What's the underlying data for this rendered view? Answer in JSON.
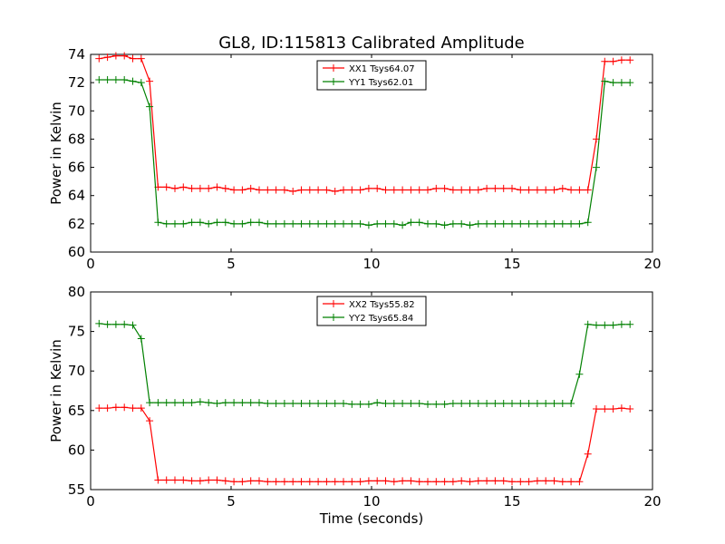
{
  "title": "GL8, ID:115813 Calibrated Amplitude",
  "chart_data": [
    {
      "type": "line",
      "xlabel": "",
      "ylabel": "Power in Kelvin",
      "xlim": [
        0,
        20
      ],
      "ylim": [
        60,
        74
      ],
      "xticks": [
        "0",
        "5",
        "10",
        "15",
        "20"
      ],
      "yticks": [
        "60",
        "62",
        "64",
        "66",
        "68",
        "70",
        "72",
        "74"
      ],
      "grid": false,
      "legend": "top-center",
      "x": [
        0.3,
        0.6,
        0.9,
        1.2,
        1.5,
        1.8,
        2.1,
        2.4,
        2.7,
        3.0,
        3.3,
        3.6,
        3.9,
        4.2,
        4.5,
        4.8,
        5.1,
        5.4,
        5.7,
        6.0,
        6.3,
        6.6,
        6.9,
        7.2,
        7.5,
        7.8,
        8.1,
        8.4,
        8.7,
        9.0,
        9.3,
        9.6,
        9.9,
        10.2,
        10.5,
        10.8,
        11.1,
        11.4,
        11.7,
        12.0,
        12.3,
        12.6,
        12.9,
        13.2,
        13.5,
        13.8,
        14.1,
        14.4,
        14.7,
        15.0,
        15.3,
        15.6,
        15.9,
        16.2,
        16.5,
        16.8,
        17.1,
        17.4,
        17.7,
        18.0,
        18.3,
        18.6,
        18.9,
        19.2
      ],
      "series": [
        {
          "name": "XX1 Tsys64.07",
          "color": "#ff0000",
          "values": [
            73.7,
            73.8,
            73.9,
            73.9,
            73.7,
            73.7,
            72.1,
            64.6,
            64.6,
            64.5,
            64.6,
            64.5,
            64.5,
            64.5,
            64.6,
            64.5,
            64.4,
            64.4,
            64.5,
            64.4,
            64.4,
            64.4,
            64.4,
            64.3,
            64.4,
            64.4,
            64.4,
            64.4,
            64.3,
            64.4,
            64.4,
            64.4,
            64.5,
            64.5,
            64.4,
            64.4,
            64.4,
            64.4,
            64.4,
            64.4,
            64.5,
            64.5,
            64.4,
            64.4,
            64.4,
            64.4,
            64.5,
            64.5,
            64.5,
            64.5,
            64.4,
            64.4,
            64.4,
            64.4,
            64.4,
            64.5,
            64.4,
            64.4,
            64.4,
            68.0,
            73.5,
            73.5,
            73.6,
            73.6
          ]
        },
        {
          "name": "YY1 Tsys62.01",
          "color": "#008000",
          "values": [
            72.2,
            72.2,
            72.2,
            72.2,
            72.1,
            72.0,
            70.3,
            62.1,
            62.0,
            62.0,
            62.0,
            62.1,
            62.1,
            62.0,
            62.1,
            62.1,
            62.0,
            62.0,
            62.1,
            62.1,
            62.0,
            62.0,
            62.0,
            62.0,
            62.0,
            62.0,
            62.0,
            62.0,
            62.0,
            62.0,
            62.0,
            62.0,
            61.9,
            62.0,
            62.0,
            62.0,
            61.9,
            62.1,
            62.1,
            62.0,
            62.0,
            61.9,
            62.0,
            62.0,
            61.9,
            62.0,
            62.0,
            62.0,
            62.0,
            62.0,
            62.0,
            62.0,
            62.0,
            62.0,
            62.0,
            62.0,
            62.0,
            62.0,
            62.1,
            66.0,
            72.1,
            72.0,
            72.0,
            72.0
          ]
        }
      ]
    },
    {
      "type": "line",
      "xlabel": "Time (seconds)",
      "ylabel": "Power in Kelvin",
      "xlim": [
        0,
        20
      ],
      "ylim": [
        55,
        80
      ],
      "xticks": [
        "0",
        "5",
        "10",
        "15",
        "20"
      ],
      "yticks": [
        "55",
        "60",
        "65",
        "70",
        "75",
        "80"
      ],
      "grid": false,
      "legend": "top-center",
      "x": [
        0.3,
        0.6,
        0.9,
        1.2,
        1.5,
        1.8,
        2.1,
        2.4,
        2.7,
        3.0,
        3.3,
        3.6,
        3.9,
        4.2,
        4.5,
        4.8,
        5.1,
        5.4,
        5.7,
        6.0,
        6.3,
        6.6,
        6.9,
        7.2,
        7.5,
        7.8,
        8.1,
        8.4,
        8.7,
        9.0,
        9.3,
        9.6,
        9.9,
        10.2,
        10.5,
        10.8,
        11.1,
        11.4,
        11.7,
        12.0,
        12.3,
        12.6,
        12.9,
        13.2,
        13.5,
        13.8,
        14.1,
        14.4,
        14.7,
        15.0,
        15.3,
        15.6,
        15.9,
        16.2,
        16.5,
        16.8,
        17.1,
        17.4,
        17.7,
        18.0,
        18.3,
        18.6,
        18.9,
        19.2
      ],
      "series": [
        {
          "name": "XX2 Tsys55.82",
          "color": "#ff0000",
          "values": [
            65.3,
            65.3,
            65.4,
            65.4,
            65.3,
            65.3,
            63.7,
            56.2,
            56.2,
            56.2,
            56.2,
            56.1,
            56.1,
            56.2,
            56.2,
            56.1,
            56.0,
            56.0,
            56.1,
            56.1,
            56.0,
            56.0,
            56.0,
            56.0,
            56.0,
            56.0,
            56.0,
            56.0,
            56.0,
            56.0,
            56.0,
            56.0,
            56.1,
            56.1,
            56.1,
            56.0,
            56.1,
            56.1,
            56.0,
            56.0,
            56.0,
            56.0,
            56.0,
            56.1,
            56.0,
            56.1,
            56.1,
            56.1,
            56.1,
            56.0,
            56.0,
            56.0,
            56.1,
            56.1,
            56.1,
            56.0,
            56.0,
            56.0,
            59.5,
            65.2,
            65.2,
            65.2,
            65.3,
            65.2
          ]
        },
        {
          "name": "YY2 Tsys65.84",
          "color": "#008000",
          "values": [
            76.0,
            75.9,
            75.9,
            75.9,
            75.8,
            74.1,
            66.0,
            66.0,
            66.0,
            66.0,
            66.0,
            66.0,
            66.1,
            66.0,
            65.9,
            66.0,
            66.0,
            66.0,
            66.0,
            66.0,
            65.9,
            65.9,
            65.9,
            65.9,
            65.9,
            65.9,
            65.9,
            65.9,
            65.9,
            65.9,
            65.8,
            65.8,
            65.8,
            66.0,
            65.9,
            65.9,
            65.9,
            65.9,
            65.9,
            65.8,
            65.8,
            65.8,
            65.9,
            65.9,
            65.9,
            65.9,
            65.9,
            65.9,
            65.9,
            65.9,
            65.9,
            65.9,
            65.9,
            65.9,
            65.9,
            65.9,
            65.9,
            69.6,
            75.9,
            75.8,
            75.8,
            75.8,
            75.9,
            75.9
          ]
        }
      ]
    }
  ]
}
